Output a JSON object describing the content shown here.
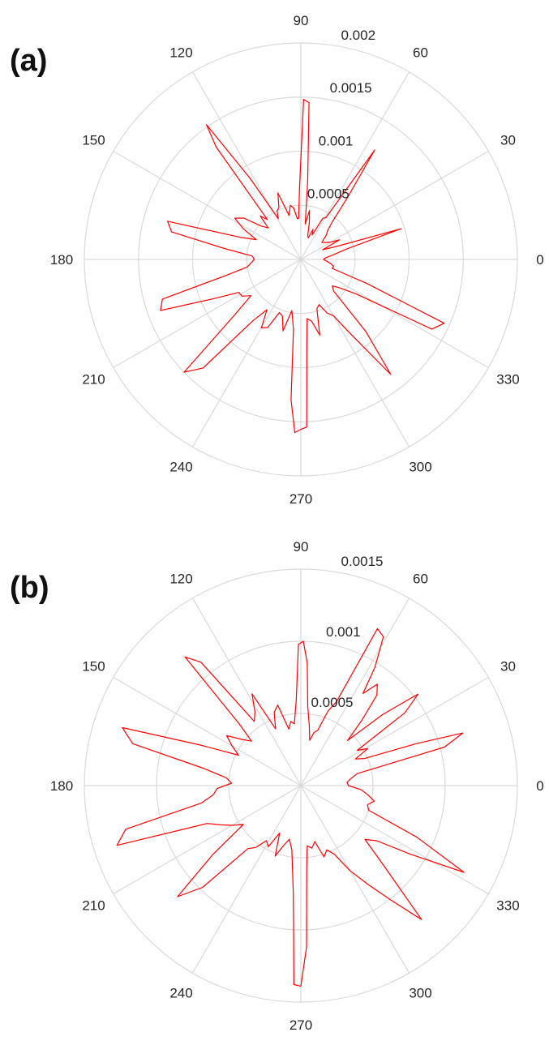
{
  "chart_data": [
    {
      "type": "polar-line",
      "panel_label": "(a)",
      "theta_ticks": [
        "0",
        "30",
        "60",
        "90",
        "120",
        "150",
        "180",
        "210",
        "240",
        "270",
        "300",
        "330"
      ],
      "r_ticks": [
        "0.0005",
        "0.001",
        "0.0015",
        "0.002"
      ],
      "rlim": [
        0,
        0.002
      ],
      "grid": true,
      "colors": {
        "grid": "#d9d9d9",
        "series": "#ff0000"
      },
      "series": [
        {
          "theta_deg": [
            0,
            4,
            8,
            13,
            17,
            20,
            24,
            27,
            30,
            34,
            39,
            44,
            47,
            50,
            53,
            56,
            59,
            62,
            65,
            68,
            71,
            74,
            77,
            80,
            83,
            85,
            87,
            89,
            91,
            93,
            95,
            98,
            101,
            105,
            109,
            113,
            116,
            119,
            122,
            125,
            127,
            130,
            133,
            136,
            140,
            144,
            148,
            152,
            156,
            160,
            164,
            168,
            172,
            176,
            180,
            184,
            188,
            192,
            196,
            200,
            204,
            208,
            212,
            216,
            220,
            224,
            228,
            232,
            236,
            240,
            244,
            248,
            252,
            256,
            260,
            264,
            266,
            268,
            270,
            272,
            274,
            276,
            280,
            284,
            288,
            292,
            296,
            300,
            304,
            308,
            312,
            316,
            320,
            324,
            328,
            332,
            336,
            340,
            344,
            348,
            352,
            356
          ],
          "r": [
            0.00021,
            0.00023,
            0.0003,
            0.00044,
            0.00097,
            0.00035,
            0.00022,
            0.0004,
            0.00032,
            0.00028,
            0.00025,
            0.00033,
            0.00036,
            0.00045,
            0.00072,
            0.00122,
            0.00045,
            0.00043,
            0.00025,
            0.0003,
            0.00021,
            0.00023,
            0.00035,
            0.00046,
            0.00033,
            0.00072,
            0.00145,
            0.00148,
            0.00067,
            0.00038,
            0.00038,
            0.00048,
            0.00051,
            0.00042,
            0.00065,
            0.00052,
            0.0005,
            0.00043,
            0.00088,
            0.00152,
            0.0013,
            0.00048,
            0.00055,
            0.00042,
            0.00048,
            0.00065,
            0.00072,
            0.0006,
            0.00045,
            0.0006,
            0.00128,
            0.00122,
            0.0007,
            0.00045,
            0.00043,
            0.00046,
            0.0005,
            0.0007,
            0.00133,
            0.00138,
            0.0009,
            0.00065,
            0.00064,
            0.00057,
            0.0008,
            0.0015,
            0.00135,
            0.00072,
            0.00056,
            0.00073,
            0.0007,
            0.00053,
            0.00055,
            0.00068,
            0.00048,
            0.00065,
            0.0013,
            0.0016,
            0.00157,
            0.00155,
            0.0008,
            0.00055,
            0.00058,
            0.00072,
            0.00048,
            0.00045,
            0.00055,
            0.0006,
            0.00085,
            0.00135,
            0.0009,
            0.00042,
            0.00038,
            0.00045,
            0.0006,
            0.00137,
            0.00145,
            0.00065,
            0.0003,
            0.00031,
            0.00028,
            0.00024
          ]
        }
      ]
    },
    {
      "type": "polar-line",
      "panel_label": "(b)",
      "theta_ticks": [
        "0",
        "30",
        "60",
        "90",
        "120",
        "150",
        "180",
        "210",
        "240",
        "270",
        "300",
        "330"
      ],
      "r_ticks": [
        "0.0005",
        "0.001",
        "0.0015"
      ],
      "rlim": [
        0,
        0.0015
      ],
      "grid": true,
      "colors": {
        "grid": "#d9d9d9",
        "series": "#ff0000"
      },
      "series": [
        {
          "theta_deg": [
            0,
            4,
            8,
            12,
            15,
            18,
            20,
            23,
            26,
            29,
            32,
            35,
            38,
            41,
            44,
            47,
            50,
            53,
            56,
            58,
            61,
            64,
            67,
            70,
            73,
            76,
            79,
            82,
            85,
            87,
            89,
            91,
            93,
            96,
            99,
            102,
            106,
            110,
            114,
            118,
            122,
            126,
            129,
            132,
            135,
            138,
            142,
            146,
            150,
            154,
            158,
            162,
            166,
            170,
            174,
            178,
            182,
            186,
            190,
            194,
            198,
            202,
            206,
            210,
            214,
            218,
            222,
            226,
            230,
            234,
            238,
            242,
            246,
            250,
            254,
            258,
            262,
            266,
            268,
            270,
            272,
            274,
            276,
            280,
            284,
            288,
            292,
            296,
            300,
            304,
            308,
            312,
            316,
            320,
            324,
            328,
            332,
            336,
            340,
            344,
            348,
            352,
            356
          ],
          "r": [
            0.00033,
            0.00032,
            0.00035,
            0.0004,
            0.00103,
            0.00118,
            0.00085,
            0.00048,
            0.00042,
            0.00053,
            0.00046,
            0.00088,
            0.00103,
            0.00075,
            0.00045,
            0.00062,
            0.00082,
            0.00088,
            0.00077,
            0.00097,
            0.00118,
            0.00121,
            0.00063,
            0.00055,
            0.0004,
            0.00038,
            0.00032,
            0.00042,
            0.00055,
            0.00085,
            0.001,
            0.00098,
            0.0006,
            0.00043,
            0.00045,
            0.0004,
            0.00058,
            0.00054,
            0.00043,
            0.00072,
            0.0006,
            0.00055,
            0.0011,
            0.0012,
            0.0006,
            0.00046,
            0.00052,
            0.00062,
            0.00055,
            0.00048,
            0.00075,
            0.0013,
            0.0012,
            0.00068,
            0.00052,
            0.00048,
            0.00058,
            0.00061,
            0.0007,
            0.00125,
            0.00134,
            0.0007,
            0.00062,
            0.00055,
            0.00048,
            0.00077,
            0.00115,
            0.00098,
            0.00057,
            0.00053,
            0.00045,
            0.00048,
            0.00036,
            0.00052,
            0.00043,
            0.00038,
            0.00045,
            0.00075,
            0.00138,
            0.00139,
            0.00112,
            0.00058,
            0.00042,
            0.00044,
            0.0004,
            0.00052,
            0.00048,
            0.00053,
            0.00068,
            0.00082,
            0.001,
            0.00125,
            0.0008,
            0.00058,
            0.00065,
            0.0009,
            0.00128,
            0.00088,
            0.0005,
            0.00048,
            0.00052,
            0.00047,
            0.00042
          ]
        }
      ]
    }
  ]
}
